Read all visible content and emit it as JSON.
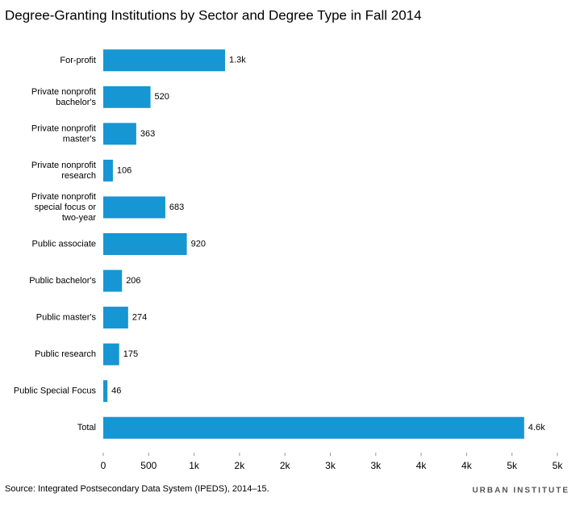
{
  "chart_data": {
    "type": "bar",
    "orientation": "horizontal",
    "title": "Degree-Granting Institutions by Sector and Degree Type in Fall 2014",
    "categories": [
      "For-profit",
      "Private nonprofit bachelor's",
      "Private nonprofit master's",
      "Private nonprofit research",
      "Private nonprofit special focus or two-year",
      "Public associate",
      "Public bachelor's",
      "Public master's",
      "Public research",
      "Public Special Focus",
      "Total"
    ],
    "values": [
      1341,
      520,
      363,
      106,
      683,
      920,
      206,
      274,
      175,
      46,
      4634
    ],
    "value_labels": [
      "1.3k",
      "520",
      "363",
      "106",
      "683",
      "920",
      "206",
      "274",
      "175",
      "46",
      "4.6k"
    ],
    "color": "#1696d2",
    "xlim": [
      0,
      5000
    ],
    "xticks": [
      0,
      500,
      {
        "value": 1000,
        "label": "1k"
      },
      {
        "value": 1500,
        "label": "2k"
      },
      {
        "value": 2000,
        "label": "2k"
      },
      {
        "value": 2500,
        "label": "3k"
      },
      {
        "value": 3000,
        "label": "3k"
      },
      {
        "value": 3500,
        "label": "4k"
      },
      {
        "value": 4000,
        "label": "4k"
      },
      {
        "value": 4500,
        "label": "5k"
      },
      {
        "value": 5000,
        "label": "5k"
      }
    ],
    "grid": false,
    "source": "Source: Integrated Postsecondary Data System (IPEDS), 2014–15.",
    "brand": "URBAN INSTITUTE"
  }
}
